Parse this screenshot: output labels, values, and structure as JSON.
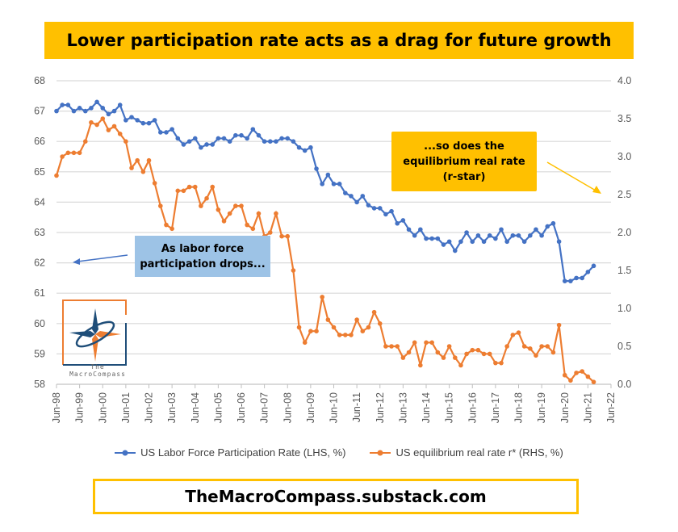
{
  "title": "Lower participation rate acts as a drag for future growth",
  "footer": "TheMacroCompass.substack.com",
  "annotations": {
    "left": "As labor force participation drops...",
    "right_line1": "...so does the",
    "right_line2": "equilibrium real rate",
    "right_line3": "(r-star)"
  },
  "logo": {
    "line1": "The",
    "line2": "MacroCompass"
  },
  "chart_data": {
    "type": "line",
    "title": "Lower participation rate acts as a drag for future growth",
    "x_start": "Jun-98",
    "x_step": "quarter",
    "x_ticks": [
      "Jun-98",
      "Jun-99",
      "Jun-00",
      "Jun-01",
      "Jun-02",
      "Jun-03",
      "Jun-04",
      "Jun-05",
      "Jun-06",
      "Jun-07",
      "Jun-08",
      "Jun-09",
      "Jun-10",
      "Jun-11",
      "Jun-12",
      "Jun-13",
      "Jun-14",
      "Jun-15",
      "Jun-16",
      "Jun-17",
      "Jun-18",
      "Jun-19",
      "Jun-20",
      "Jun-21",
      "Jun-22"
    ],
    "y_left": {
      "lim": [
        58,
        68
      ],
      "ticks": [
        "58",
        "59",
        "60",
        "61",
        "62",
        "63",
        "64",
        "65",
        "66",
        "67",
        "68"
      ]
    },
    "y_right": {
      "lim": [
        0,
        4
      ],
      "ticks": [
        "0.0",
        "0.5",
        "1.0",
        "1.5",
        "2.0",
        "2.5",
        "3.0",
        "3.5",
        "4.0"
      ]
    },
    "grid": true,
    "legend_position": "bottom",
    "series": [
      {
        "name": "US Labor Force Participation Rate (LHS, %)",
        "axis": "left",
        "color": "#4472C4",
        "values": [
          67.0,
          67.2,
          67.2,
          67.0,
          67.1,
          67.0,
          67.1,
          67.3,
          67.1,
          66.9,
          67.0,
          67.2,
          66.7,
          66.8,
          66.7,
          66.6,
          66.6,
          66.7,
          66.3,
          66.3,
          66.4,
          66.1,
          65.9,
          66.0,
          66.1,
          65.8,
          65.9,
          65.9,
          66.1,
          66.1,
          66.0,
          66.2,
          66.2,
          66.1,
          66.4,
          66.2,
          66.0,
          66.0,
          66.0,
          66.1,
          66.1,
          66.0,
          65.8,
          65.7,
          65.8,
          65.1,
          64.6,
          64.9,
          64.6,
          64.6,
          64.3,
          64.2,
          64.0,
          64.2,
          63.9,
          63.8,
          63.8,
          63.6,
          63.7,
          63.3,
          63.4,
          63.1,
          62.9,
          63.1,
          62.8,
          62.8,
          62.8,
          62.6,
          62.7,
          62.4,
          62.7,
          63.0,
          62.7,
          62.9,
          62.7,
          62.9,
          62.8,
          63.1,
          62.7,
          62.9,
          62.9,
          62.7,
          62.9,
          63.1,
          62.9,
          63.2,
          63.3,
          62.7,
          61.4,
          61.4,
          61.5,
          61.5,
          61.7,
          61.9
        ]
      },
      {
        "name": "US equilibrium real rate r* (RHS, %)",
        "axis": "right",
        "color": "#ED7D31",
        "values": [
          2.75,
          3.0,
          3.05,
          3.05,
          3.05,
          3.2,
          3.45,
          3.42,
          3.5,
          3.35,
          3.4,
          3.3,
          3.2,
          2.85,
          2.95,
          2.8,
          2.95,
          2.65,
          2.35,
          2.1,
          2.05,
          2.55,
          2.55,
          2.6,
          2.6,
          2.35,
          2.45,
          2.6,
          2.3,
          2.15,
          2.25,
          2.35,
          2.35,
          2.1,
          2.05,
          2.25,
          1.95,
          2.0,
          2.25,
          1.95,
          1.95,
          1.5,
          0.75,
          0.55,
          0.7,
          0.7,
          1.15,
          0.85,
          0.75,
          0.65,
          0.65,
          0.65,
          0.85,
          0.7,
          0.75,
          0.95,
          0.8,
          0.5,
          0.5,
          0.5,
          0.35,
          0.42,
          0.55,
          0.25,
          0.55,
          0.55,
          0.42,
          0.35,
          0.5,
          0.35,
          0.25,
          0.4,
          0.45,
          0.45,
          0.4,
          0.4,
          0.28,
          0.28,
          0.5,
          0.65,
          0.68,
          0.5,
          0.47,
          0.38,
          0.5,
          0.5,
          0.42,
          0.78,
          0.12,
          0.05,
          0.15,
          0.17,
          0.1,
          0.03
        ]
      }
    ]
  }
}
